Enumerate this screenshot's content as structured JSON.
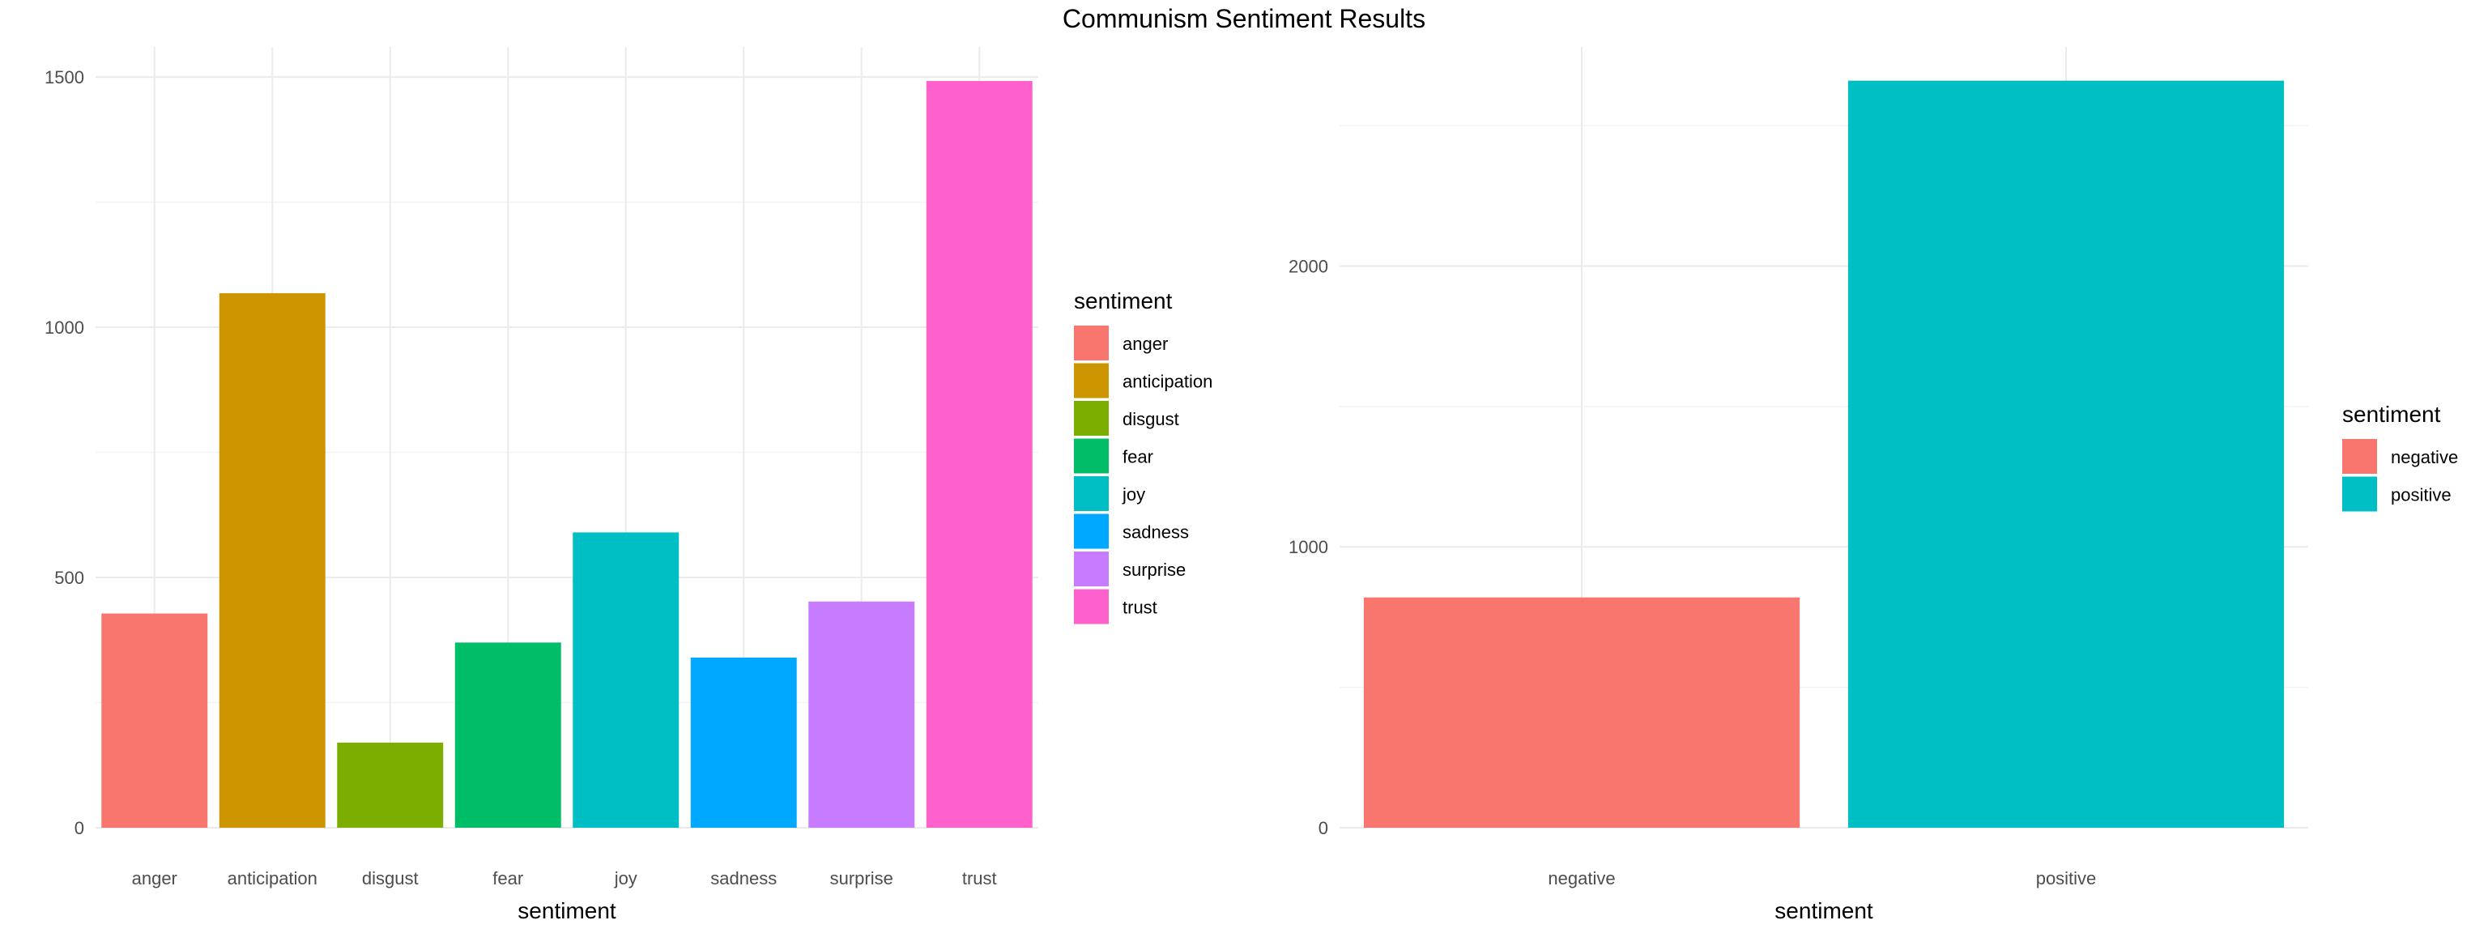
{
  "figure": {
    "title": "Communism Sentiment Results"
  },
  "chart_data": [
    {
      "type": "bar",
      "title": "",
      "xlabel": "sentiment",
      "ylabel": "",
      "categories": [
        "anger",
        "anticipation",
        "disgust",
        "fear",
        "joy",
        "sadness",
        "surprise",
        "trust"
      ],
      "values": [
        428,
        1068,
        170,
        370,
        590,
        340,
        452,
        1492
      ],
      "colors": [
        "#F8766D",
        "#CD9600",
        "#7CAE00",
        "#00BE67",
        "#00BFC4",
        "#00A9FF",
        "#C77CFF",
        "#FF61CC"
      ],
      "ylim": [
        0,
        1560
      ],
      "yticks": [
        0,
        500,
        1000,
        1500
      ],
      "grid": true,
      "legend": {
        "title": "sentiment",
        "position": "right",
        "items": [
          "anger",
          "anticipation",
          "disgust",
          "fear",
          "joy",
          "sadness",
          "surprise",
          "trust"
        ]
      }
    },
    {
      "type": "bar",
      "title": "",
      "xlabel": "sentiment",
      "ylabel": "",
      "categories": [
        "negative",
        "positive"
      ],
      "values": [
        820,
        2660
      ],
      "colors": [
        "#F8766D",
        "#00BFC4"
      ],
      "ylim": [
        0,
        2780
      ],
      "yticks": [
        0,
        1000,
        2000
      ],
      "grid": true,
      "legend": {
        "title": "sentiment",
        "position": "right",
        "items": [
          "negative",
          "positive"
        ]
      }
    }
  ]
}
